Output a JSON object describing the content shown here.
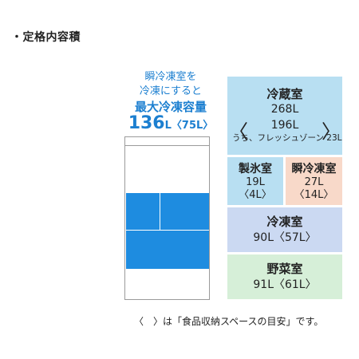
{
  "title": "・定格内容積",
  "promo": {
    "line1": "瞬冷凍室を",
    "line2": "冷凍にすると",
    "line3": "最大冷凍容量",
    "big_value": "136",
    "unit": "L",
    "paren": "〈75L〉"
  },
  "compartments": {
    "reizo": {
      "name": "冷蔵室",
      "volume": "268L",
      "sub_volume": "196L",
      "sub_note": "うち、フレッシュゾーン 23L",
      "bracket_left": "〈",
      "bracket_right": "〉"
    },
    "seihyo": {
      "name": "製氷室",
      "volume": "19L",
      "food": "〈4L〉"
    },
    "shunrei": {
      "name": "瞬冷凍室",
      "volume": "27L",
      "food": "〈14L〉"
    },
    "reito": {
      "name": "冷凍室",
      "volume": "90L〈57L〉"
    },
    "yasai": {
      "name": "野菜室",
      "volume": "91L〈61L〉"
    }
  },
  "note": "〈　〉は「食品収納スペースの目安」です。",
  "colors": {
    "accent_blue": "#1c7fd0",
    "fridge_blue": "#1e8ce0",
    "reizo_bg": "#b8dff2",
    "shunrei_bg": "#f8d9c9",
    "reito_bg": "#cbd9f2",
    "yasai_bg": "#d6efd8"
  }
}
